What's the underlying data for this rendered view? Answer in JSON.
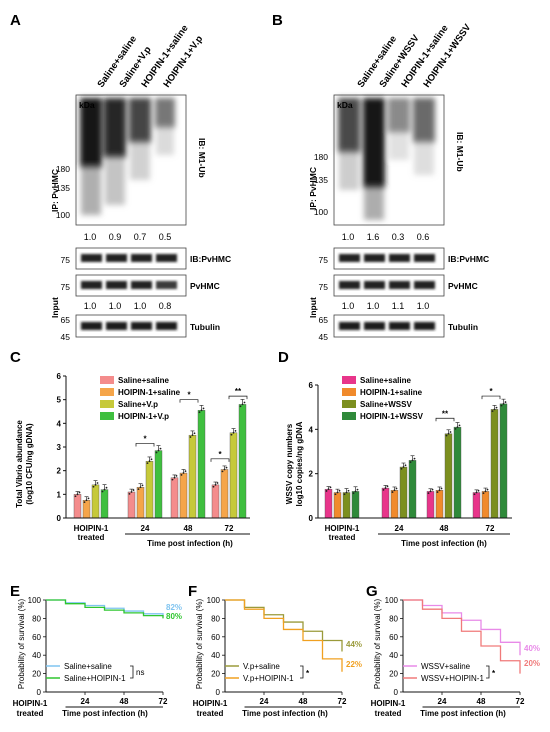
{
  "panels": {
    "A": {
      "letter": "A",
      "lanes": [
        "Saline+saline",
        "Saline+V.p",
        "HOIPIN-1+saline",
        "HOIPIN-1+V.p"
      ],
      "kda": "kDa",
      "markers": [
        "180",
        "135",
        "100",
        "75",
        "75",
        "65",
        "45"
      ],
      "ip_label": "IP: PvHMC",
      "ib_label": "IB: M1-Ub",
      "ub_quant": [
        "1.0",
        "0.9",
        "0.7",
        "0.5"
      ],
      "ib2_label": "IB:PvHMC",
      "input_label": "Input",
      "input_protein": "PvHMC",
      "input_quant": [
        "1.0",
        "1.0",
        "1.0",
        "0.8"
      ],
      "tubulin_label": "Tubulin"
    },
    "B": {
      "letter": "B",
      "lanes": [
        "Saline+saline",
        "Saline+WSSV",
        "HOIPIN-1+saline",
        "HOIPIN-1+WSSV"
      ],
      "kda": "kDa",
      "markers": [
        "180",
        "135",
        "100",
        "75",
        "75",
        "65",
        "45"
      ],
      "ip_label": "IP: PvHMC",
      "ib_label": "IB: M1-Ub",
      "ub_quant": [
        "1.0",
        "1.6",
        "0.3",
        "0.6"
      ],
      "ib2_label": "IB:PvHMC",
      "input_label": "Input",
      "input_protein": "PvHMC",
      "input_quant": [
        "1.0",
        "1.0",
        "1.1",
        "1.0"
      ],
      "tubulin_label": "Tubulin"
    },
    "C": {
      "letter": "C",
      "ylabel_lines": [
        "Total Vibrio abundance",
        "(log10 CFU/ng gDNA)"
      ],
      "xlabel": "Time post infection (h)",
      "group_labels": [
        "HOIPIN-1",
        "treated",
        "24",
        "48",
        "72"
      ],
      "legend": [
        "Saline+saline",
        "HOIPIN-1+saline",
        "Saline+V.p",
        "HOIPIN-1+V.p"
      ],
      "colors": [
        "#f48c8c",
        "#f5a54a",
        "#c6c93a",
        "#3fbf3f"
      ],
      "sig": [
        "*",
        "*",
        "*",
        "**"
      ]
    },
    "D": {
      "letter": "D",
      "ylabel_lines": [
        "WSSV copy numbers",
        "log10 copies/ng gDNA"
      ],
      "xlabel": "Time post infection (h)",
      "group_labels": [
        "HOIPIN-1",
        "treated",
        "24",
        "48",
        "72"
      ],
      "legend": [
        "Saline+saline",
        "HOIPIN-1+saline",
        "Saline+WSSV",
        "HOIPIN-1+WSSV"
      ],
      "colors": [
        "#e8358a",
        "#f08a2c",
        "#7c8f1f",
        "#2f8a3a"
      ],
      "sig": [
        "**",
        "*"
      ]
    },
    "E": {
      "letter": "E",
      "ylabel": "Probability of survival (%)",
      "xlabel": "Time post infection (h)",
      "group_label": [
        "HOIPIN-1",
        "treated"
      ],
      "legend": [
        "Saline+saline",
        "Saline+HOIPIN-1"
      ],
      "colors": [
        "#7fc4f0",
        "#2fc62f"
      ],
      "end_labels": [
        "82%",
        "80%"
      ],
      "sig": "ns"
    },
    "F": {
      "letter": "F",
      "ylabel": "Probability of survival (%)",
      "xlabel": "Time post infection (h)",
      "group_label": [
        "HOIPIN-1",
        "treated"
      ],
      "legend": [
        "V.p+saline",
        "V.p+HOIPIN-1"
      ],
      "colors": [
        "#9a9a3a",
        "#f0a020"
      ],
      "end_labels": [
        "44%",
        "22%"
      ],
      "sig": "*"
    },
    "G": {
      "letter": "G",
      "ylabel": "Probability of survival (%)",
      "xlabel": "Time post infection (h)",
      "group_label": [
        "HOIPIN-1",
        "treated"
      ],
      "legend": [
        "WSSV+saline",
        "WSSV+HOIPIN-1"
      ],
      "colors": [
        "#e88ae8",
        "#f07a7a"
      ],
      "end_labels": [
        "40%",
        "20%"
      ],
      "sig": "*"
    }
  },
  "chart_data": [
    {
      "type": "bar",
      "panel": "C",
      "categories": [
        "HOIPIN-1 treated",
        "24",
        "48",
        "72"
      ],
      "series": [
        {
          "name": "Saline+saline",
          "values": [
            1.0,
            1.1,
            1.7,
            1.4
          ]
        },
        {
          "name": "HOIPIN-1+saline",
          "values": [
            0.75,
            1.3,
            1.9,
            2.05
          ]
        },
        {
          "name": "Saline+V.p",
          "values": [
            1.4,
            2.4,
            3.5,
            3.6
          ]
        },
        {
          "name": "HOIPIN-1+V.p",
          "values": [
            1.2,
            2.85,
            4.55,
            4.8
          ]
        }
      ],
      "ylim": [
        0,
        6
      ],
      "yticks": [
        0,
        1,
        2,
        3,
        4,
        5,
        6
      ]
    },
    {
      "type": "bar",
      "panel": "D",
      "categories": [
        "HOIPIN-1 treated",
        "24",
        "48",
        "72"
      ],
      "series": [
        {
          "name": "Saline+saline",
          "values": [
            1.3,
            1.35,
            1.2,
            1.15
          ]
        },
        {
          "name": "HOIPIN-1+saline",
          "values": [
            1.15,
            1.25,
            1.25,
            1.2
          ]
        },
        {
          "name": "Saline+WSSV",
          "values": [
            1.15,
            2.3,
            3.8,
            4.9
          ]
        },
        {
          "name": "HOIPIN-1+WSSV",
          "values": [
            1.2,
            2.6,
            4.1,
            5.15
          ]
        }
      ],
      "ylim": [
        0,
        6
      ],
      "yticks": [
        0,
        2,
        4,
        6
      ]
    },
    {
      "type": "line",
      "panel": "E",
      "series": [
        {
          "name": "Saline+saline",
          "x": [
            0,
            12,
            24,
            36,
            48,
            60,
            72
          ],
          "y": [
            100,
            97,
            94,
            91,
            88,
            85,
            82
          ]
        },
        {
          "name": "Saline+HOIPIN-1",
          "x": [
            0,
            12,
            24,
            36,
            48,
            60,
            72
          ],
          "y": [
            100,
            96,
            92,
            89,
            86,
            83,
            80
          ]
        }
      ],
      "xticks": [
        24,
        48,
        72
      ],
      "yticks": [
        0,
        20,
        40,
        60,
        80,
        100
      ],
      "ylim": [
        0,
        100
      ]
    },
    {
      "type": "line",
      "panel": "F",
      "series": [
        {
          "name": "V.p+saline",
          "x": [
            0,
            12,
            24,
            36,
            48,
            60,
            72
          ],
          "y": [
            100,
            92,
            84,
            76,
            66,
            56,
            44
          ]
        },
        {
          "name": "V.p+HOIPIN-1",
          "x": [
            0,
            12,
            24,
            36,
            48,
            60,
            72
          ],
          "y": [
            100,
            90,
            80,
            68,
            56,
            36,
            22
          ]
        }
      ],
      "xticks": [
        24,
        48,
        72
      ],
      "yticks": [
        0,
        20,
        40,
        60,
        80,
        100
      ],
      "ylim": [
        0,
        100
      ]
    },
    {
      "type": "line",
      "panel": "G",
      "series": [
        {
          "name": "WSSV+saline",
          "x": [
            0,
            12,
            24,
            36,
            48,
            60,
            72
          ],
          "y": [
            100,
            94,
            86,
            78,
            68,
            54,
            40
          ]
        },
        {
          "name": "WSSV+HOIPIN-1",
          "x": [
            0,
            12,
            24,
            36,
            48,
            60,
            72
          ],
          "y": [
            100,
            90,
            80,
            66,
            50,
            34,
            20
          ]
        }
      ],
      "xticks": [
        24,
        48,
        72
      ],
      "yticks": [
        0,
        20,
        40,
        60,
        80,
        100
      ],
      "ylim": [
        0,
        100
      ]
    }
  ]
}
